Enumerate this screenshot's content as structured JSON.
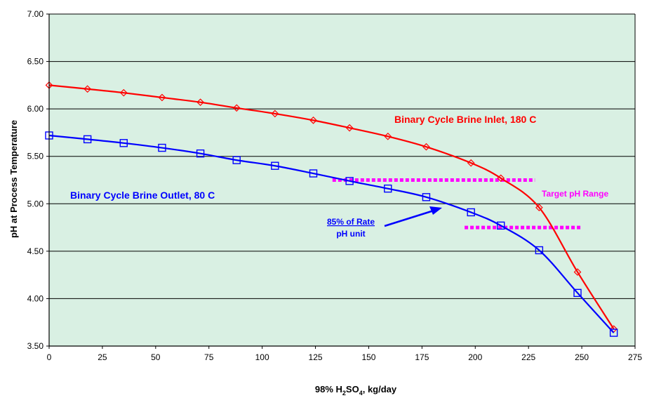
{
  "chart_data": {
    "type": "line",
    "title": "",
    "xlabel": "98% H2SO4, kg/day",
    "xlabel_parts": {
      "pre": "98% H",
      "sub1": "2",
      "mid": "SO",
      "sub2": "4",
      "post": ", kg/day"
    },
    "ylabel": "pH at Process Temperature",
    "xlim": [
      0,
      275
    ],
    "ylim": [
      3.5,
      7.0
    ],
    "x_ticks": [
      "0",
      "25",
      "50",
      "75",
      "100",
      "125",
      "150",
      "175",
      "200",
      "225",
      "250",
      "275"
    ],
    "y_ticks": [
      "3.50",
      "4.00",
      "4.50",
      "5.00",
      "5.50",
      "6.00",
      "6.50",
      "7.00"
    ],
    "grid": "horizontal",
    "legend": "none",
    "background_color": "#d9f0e3",
    "series": [
      {
        "name": "Binary Cycle Brine Inlet, 180 C",
        "color": "#ff0000",
        "marker": "diamond",
        "x": [
          0,
          18,
          35,
          53,
          71,
          88,
          106,
          124,
          141,
          159,
          177,
          198,
          212,
          230,
          248,
          265
        ],
        "y": [
          6.25,
          6.21,
          6.17,
          6.12,
          6.07,
          6.01,
          5.95,
          5.88,
          5.8,
          5.71,
          5.6,
          5.43,
          5.27,
          4.96,
          4.28,
          3.68
        ]
      },
      {
        "name": "Binary Cycle Brine Outlet, 80 C",
        "color": "#0000ff",
        "marker": "square",
        "x": [
          0,
          18,
          35,
          53,
          71,
          88,
          106,
          124,
          141,
          159,
          177,
          198,
          212,
          230,
          248,
          265
        ],
        "y": [
          5.72,
          5.68,
          5.64,
          5.59,
          5.53,
          5.46,
          5.4,
          5.32,
          5.24,
          5.16,
          5.07,
          4.91,
          4.77,
          4.51,
          4.06,
          3.64
        ]
      }
    ],
    "target_range": {
      "label": "Target pH Range",
      "color": "#ff00ff",
      "lines": [
        {
          "y": 5.25,
          "x_start": 133,
          "x_end": 228
        },
        {
          "y": 4.75,
          "x_start": 195,
          "x_end": 250
        }
      ]
    },
    "annotations": {
      "inlet_label": "Binary Cycle Brine Inlet, 180 C",
      "outlet_label": "Binary Cycle Brine Outlet, 80 C",
      "rate_line1": "85% of Rate",
      "rate_line2": "pH unit"
    }
  }
}
